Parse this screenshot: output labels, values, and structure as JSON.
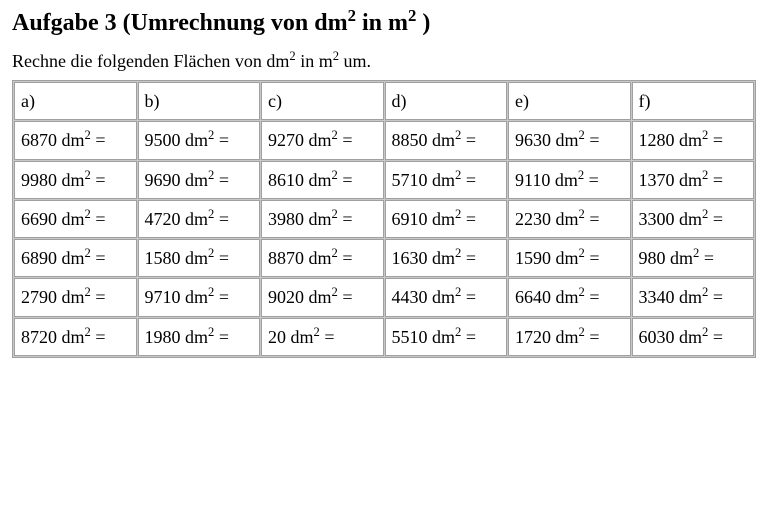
{
  "title_prefix": "Aufgabe 3 (Umrechnung von dm",
  "title_exp1": "2",
  "title_mid": " in m",
  "title_exp2": "2",
  "title_suffix": " )",
  "instruction_prefix": "Rechne die folgenden Flächen von dm",
  "instruction_exp1": "2",
  "instruction_mid": " in m",
  "instruction_exp2": "2",
  "instruction_suffix": " um.",
  "unit_base": "dm",
  "unit_exp": "2",
  "table": {
    "columns": [
      "a)",
      "b)",
      "c)",
      "d)",
      "e)",
      "f)"
    ],
    "rows": [
      [
        "6870",
        "9500",
        "9270",
        "8850",
        "9630",
        "1280"
      ],
      [
        "9980",
        "9690",
        "8610",
        "5710",
        "9110",
        "1370"
      ],
      [
        "6690",
        "4720",
        "3980",
        "6910",
        "2230",
        "3300"
      ],
      [
        "6890",
        "1580",
        "8870",
        "1630",
        "1590",
        "980"
      ],
      [
        "2790",
        "9710",
        "9020",
        "4430",
        "6640",
        "3340"
      ],
      [
        "8720",
        "1980",
        "20",
        "5510",
        "1720",
        "6030"
      ]
    ]
  }
}
